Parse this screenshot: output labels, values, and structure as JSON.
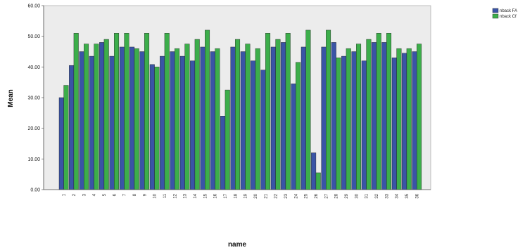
{
  "chart_data": {
    "type": "bar",
    "xlabel": "name",
    "ylabel": "Mean",
    "ylim": [
      0,
      60
    ],
    "y_ticks": [
      "0.00",
      "10.00",
      "20.00",
      "30.00",
      "40.00",
      "50.00",
      "60.00"
    ],
    "grid": false,
    "legend_position": "top-right",
    "colors": {
      "plot_bg": "#ececec",
      "series_1": "#3a54a6",
      "series_2": "#3cae4a",
      "bar_stroke": "#1c1c1c"
    },
    "categories": [
      "1",
      "2",
      "3",
      "4",
      "5",
      "6",
      "7",
      "8",
      "9",
      "10",
      "11",
      "12",
      "13",
      "14",
      "15",
      "16",
      "17",
      "18",
      "19",
      "20",
      "21",
      "22",
      "23",
      "24",
      "25",
      "26",
      "27",
      "28",
      "29",
      "30",
      "31",
      "32",
      "33",
      "34",
      "35",
      "36"
    ],
    "series": [
      {
        "name": "nback FA",
        "values": [
          30,
          40.5,
          45,
          43.5,
          48,
          43.5,
          46.5,
          46.5,
          45,
          40.8,
          43.5,
          45,
          43.5,
          42,
          46.5,
          45,
          24,
          46.5,
          45,
          42,
          39,
          46.5,
          48,
          34.5,
          46.5,
          12,
          46.5,
          48,
          43.5,
          45,
          42,
          48,
          48,
          43,
          44.5,
          45
        ]
      },
      {
        "name": "nback Cf",
        "values": [
          34,
          51,
          47.5,
          47.5,
          49,
          51,
          51,
          46,
          51,
          40,
          51,
          46,
          47.5,
          49,
          52,
          46,
          32.5,
          49,
          47.5,
          46,
          51,
          49,
          51,
          41.5,
          52,
          5.5,
          52,
          43,
          46,
          47.5,
          49,
          51,
          51,
          46,
          46,
          47.5
        ]
      }
    ]
  }
}
